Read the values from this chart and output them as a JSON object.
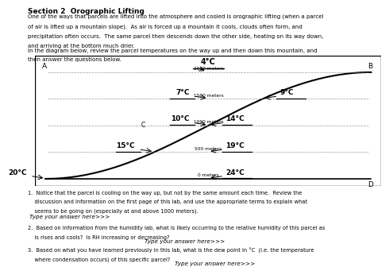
{
  "title": "Section 2  Orographic Lifting",
  "intro_text": "One of the ways that parcels are lifted into the atmosphere and cooled is orographic lifting (when a parcel\nof air is lifted up a mountain slope).  As air is forced up a mountain it cools, clouds often form, and\nprecipitation often occurs.  The same parcel then descends down the other side, heating on its way down,\nand arriving at the bottom much drier.",
  "diagram_text": "In the diagram below, review the parcel temperatures on the way up and then down this mountain, and\nthen answer the questions below.",
  "left_temps": [
    "20°C",
    "15°C",
    "10°C",
    "7°C",
    "4°C"
  ],
  "right_temps": [
    "9°C",
    "14°C",
    "19°C",
    "24°C"
  ],
  "elevations": [
    "0 meters",
    "500 meters",
    "1000 meters",
    "1500 meters",
    "2000 meters"
  ],
  "q1_line1": "1.  Notice that the parcel is cooling on the way up, but not by the same amount each time.  Review the",
  "q1_line2": "    discussion and information on the first page of this lab, and use the appropriate terms to explain what",
  "q1_line3": "    seems to be going on (especially at and above 1000 meters).",
  "q1_answer": "Type your answer here>>>",
  "q2_line1": "2.  Based on information from the humidity lab, what is likely occurring to the relative humidity of this parcel as",
  "q2_line2": "    is rises and cools?  Is RH increasing or decreasing?",
  "q2_answer": "Type your answer here>>>",
  "q3_line1": "3.  Based on what you have learned previously in this lab, what is the dew point in °C  (i.e. the temperature",
  "q3_line2": "    where condensation occurs) of this specific parcel?",
  "q3_answer": "Type your answer here>>>",
  "highlight_color": "#FFFF00",
  "bg_color": "#ffffff"
}
